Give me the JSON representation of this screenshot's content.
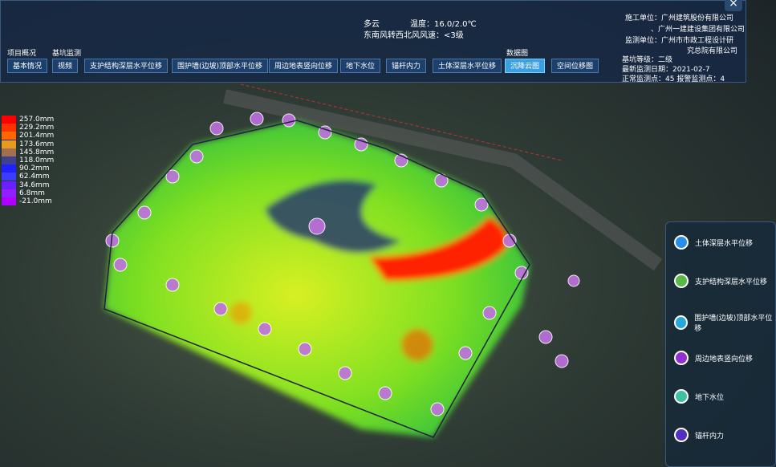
{
  "header": {
    "weather": "多云",
    "temperature": "温度：16.0/2.0℃",
    "wind": "东南风转西北风风速：<3级"
  },
  "info": [
    "施工单位：广州建筑股份有限公司",
    "、广州一建建设集团有限公司",
    "监测单位：广州市市政工程设计研",
    "究总院有限公司",
    "基坑等级：二级",
    "最新监测日期：2021-02-7",
    "正常监测点：45  报警监测点：4"
  ],
  "nav": [
    {
      "label": "项目概况",
      "buttons": [
        "基本情况"
      ]
    },
    {
      "label": "基坑监测",
      "buttons": [
        "视频",
        "支护结构深层水平位移",
        "围护墙(边坡)顶部水平位移",
        "周边地表竖向位移",
        "地下水位",
        "锚杆内力",
        "土体深层水平位移"
      ]
    },
    {
      "label": "数据图",
      "buttons": [
        "沉降云图",
        "空间位移图"
      ]
    }
  ],
  "close": "×",
  "scale": [
    {
      "label": "257.0mm",
      "color": "#ff0000"
    },
    {
      "label": "229.2mm",
      "color": "#ff3300"
    },
    {
      "label": "201.4mm",
      "color": "#ff6600"
    },
    {
      "label": "173.6mm",
      "color": "#e89a20"
    },
    {
      "label": "145.8mm",
      "color": "#a07050"
    },
    {
      "label": "118.0mm",
      "color": "#404090"
    },
    {
      "label": "90.2mm",
      "color": "#2020ff"
    },
    {
      "label": "62.4mm",
      "color": "#3c3cff"
    },
    {
      "label": "34.6mm",
      "color": "#6a20ff"
    },
    {
      "label": "6.8mm",
      "color": "#9020ff"
    },
    {
      "label": "-21.0mm",
      "color": "#b000ff"
    }
  ],
  "legend": [
    {
      "label": "土体深层水平位移",
      "color": "#2a8ee8"
    },
    {
      "label": "支护结构深层水平位移",
      "color": "#58b848"
    },
    {
      "label": "围护墙(边坡)顶部水平位移",
      "color": "#28a8d8"
    },
    {
      "label": "周边地表竖向位移",
      "color": "#9030d0"
    },
    {
      "label": "地下水位",
      "color": "#40c0a0"
    },
    {
      "label": "锚杆内力",
      "color": "#5030c0"
    }
  ]
}
